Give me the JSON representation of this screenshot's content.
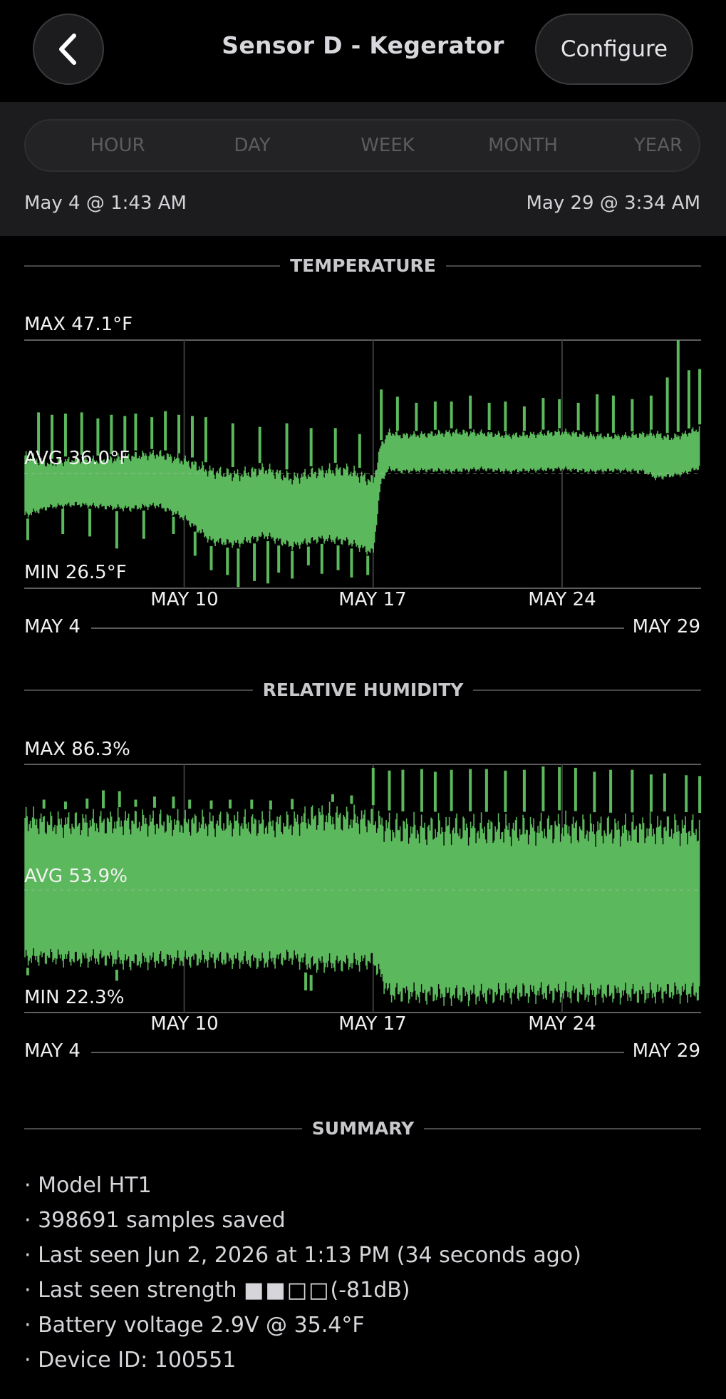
{
  "header": {
    "title": "Sensor D - Kegerator",
    "configure_label": "Configure"
  },
  "range": {
    "tabs": [
      "HOUR",
      "DAY",
      "WEEK",
      "MONTH",
      "YEAR"
    ],
    "start": "May 4 @ 1:43 AM",
    "end": "May 29 @ 3:34 AM"
  },
  "temperature": {
    "section_title": "TEMPERATURE",
    "max_label": "MAX 47.1°F",
    "avg_label": "AVG 36.0°F",
    "min_label": "MIN 26.5°F",
    "range_start": "MAY 4",
    "range_end": "MAY 29"
  },
  "humidity": {
    "section_title": "RELATIVE HUMIDITY",
    "max_label": "MAX 86.3%",
    "avg_label": "AVG 53.9%",
    "min_label": "MIN 22.3%",
    "range_start": "MAY 4",
    "range_end": "MAY 29"
  },
  "summary": {
    "section_title": "SUMMARY",
    "model": "· Model HT1",
    "samples": "· 398691 samples saved",
    "last_seen": "· Last seen Jun 2, 2026 at 1:13  PM (34 seconds ago)",
    "strength_prefix": "· Last seen strength ",
    "strength_boxes": "■■□□",
    "strength_value": "(-81dB)",
    "battery": "· Battery voltage 2.9V @ 35.4°F",
    "device_id": "· Device ID: 100551"
  },
  "colors": {
    "series": "#5cb85c",
    "background": "#000000",
    "panel": "#1c1c1e"
  },
  "chart_data": [
    {
      "type": "area",
      "title": "TEMPERATURE",
      "unit": "°F",
      "x_tick_labels": [
        "MAY 10",
        "MAY 17",
        "MAY 24"
      ],
      "x_ticks_day": [
        10,
        17,
        24
      ],
      "xlim_day": [
        4.07,
        29.15
      ],
      "ylim": [
        26.5,
        47.1
      ],
      "avg": 36.0,
      "series": [
        {
          "x_day": [
            4.1,
            5,
            6,
            7,
            8,
            9,
            10,
            11,
            12,
            13,
            14,
            15,
            16,
            16.5,
            17,
            17.3,
            17.6,
            18,
            19,
            20,
            21,
            22,
            23,
            24,
            25,
            26,
            27,
            27.5,
            28,
            28.5,
            29.1
          ],
          "band_high": [
            38.0,
            37.2,
            37.6,
            37.5,
            37.9,
            38.1,
            37.6,
            36.8,
            36.5,
            37.0,
            36.2,
            36.8,
            37.0,
            36.5,
            36.0,
            38.8,
            39.8,
            39.5,
            39.6,
            39.8,
            39.7,
            39.5,
            39.6,
            39.8,
            39.5,
            39.4,
            39.6,
            39.7,
            39.3,
            39.6,
            40.1
          ],
          "band_low": [
            32.2,
            33.0,
            33.2,
            33.0,
            32.8,
            33.1,
            32.0,
            30.0,
            29.8,
            30.5,
            29.6,
            30.2,
            30.0,
            29.5,
            29.0,
            35.2,
            36.2,
            36.0,
            36.1,
            36.0,
            36.2,
            36.0,
            36.1,
            36.2,
            36.0,
            36.1,
            36.0,
            35.4,
            35.6,
            35.8,
            36.3
          ],
          "spikes": [
            [
              4.6,
              41.1
            ],
            [
              5.1,
              40.9
            ],
            [
              5.6,
              41.0
            ],
            [
              6.2,
              41.1
            ],
            [
              6.8,
              40.6
            ],
            [
              7.3,
              40.9
            ],
            [
              7.8,
              40.8
            ],
            [
              8.2,
              41.0
            ],
            [
              8.8,
              40.7
            ],
            [
              9.3,
              41.2
            ],
            [
              9.8,
              40.9
            ],
            [
              10.3,
              40.8
            ],
            [
              10.8,
              40.7
            ],
            [
              11.8,
              40.2
            ],
            [
              12.8,
              39.9
            ],
            [
              13.8,
              40.2
            ],
            [
              14.7,
              39.8
            ],
            [
              15.6,
              39.8
            ],
            [
              16.5,
              39.3
            ],
            [
              17.3,
              43.0
            ],
            [
              17.9,
              42.4
            ],
            [
              18.6,
              41.9
            ],
            [
              19.3,
              42.0
            ],
            [
              19.9,
              42.0
            ],
            [
              20.6,
              42.5
            ],
            [
              21.3,
              41.9
            ],
            [
              21.9,
              42.0
            ],
            [
              22.6,
              41.6
            ],
            [
              23.3,
              42.3
            ],
            [
              23.9,
              42.2
            ],
            [
              24.6,
              41.9
            ],
            [
              25.3,
              42.6
            ],
            [
              25.9,
              42.5
            ],
            [
              26.6,
              42.2
            ],
            [
              27.3,
              42.5
            ],
            [
              27.9,
              44.0
            ],
            [
              28.3,
              47.1
            ],
            [
              28.7,
              44.6
            ],
            [
              29.1,
              44.7
            ]
          ],
          "dips": [
            [
              4.2,
              30.5
            ],
            [
              5.5,
              31.0
            ],
            [
              6.5,
              30.8
            ],
            [
              7.5,
              29.8
            ],
            [
              8.5,
              30.6
            ],
            [
              9.6,
              31.0
            ],
            [
              10.4,
              29.2
            ],
            [
              11.0,
              28.0
            ],
            [
              11.6,
              27.6
            ],
            [
              12.0,
              26.6
            ],
            [
              12.6,
              27.1
            ],
            [
              13.1,
              26.9
            ],
            [
              13.5,
              27.8
            ],
            [
              14.0,
              27.3
            ],
            [
              14.6,
              28.4
            ],
            [
              15.1,
              27.7
            ],
            [
              15.7,
              28.0
            ],
            [
              16.2,
              27.4
            ],
            [
              16.8,
              27.6
            ]
          ]
        }
      ]
    },
    {
      "type": "area",
      "title": "RELATIVE HUMIDITY",
      "unit": "%",
      "x_tick_labels": [
        "MAY 10",
        "MAY 17",
        "MAY 24"
      ],
      "x_ticks_day": [
        10,
        17,
        24
      ],
      "xlim_day": [
        4.07,
        29.15
      ],
      "ylim": [
        22.3,
        86.3
      ],
      "avg": 53.9,
      "series": [
        {
          "x_day": [
            4.1,
            5,
            6,
            7,
            8,
            9,
            10,
            11,
            12,
            13,
            14,
            14.7,
            15,
            16,
            17,
            17.6,
            18,
            19,
            20,
            21,
            22,
            23,
            24,
            25,
            26,
            27,
            28,
            29.1
          ],
          "band_high": [
            76.0,
            74.6,
            74.8,
            75.0,
            75.4,
            75.1,
            74.9,
            74.8,
            75.0,
            74.6,
            74.7,
            76.6,
            77.0,
            76.2,
            75.8,
            74.4,
            74.2,
            74.0,
            74.3,
            74.1,
            74.0,
            74.1,
            74.5,
            74.0,
            73.8,
            74.0,
            74.2,
            73.8
          ],
          "band_low": [
            33.8,
            34.2,
            33.6,
            33.9,
            32.8,
            33.4,
            33.5,
            33.6,
            33.3,
            33.0,
            34.2,
            32.0,
            32.2,
            32.3,
            33.2,
            24.1,
            24.3,
            24.0,
            23.7,
            23.8,
            24.3,
            24.4,
            24.3,
            24.1,
            24.3,
            24.0,
            24.6,
            24.3
          ],
          "spikes": [
            [
              4.8,
              77.2
            ],
            [
              5.6,
              76.7
            ],
            [
              6.4,
              77.5
            ],
            [
              7.0,
              79.6
            ],
            [
              7.6,
              79.4
            ],
            [
              8.2,
              77.2
            ],
            [
              8.9,
              78.0
            ],
            [
              9.6,
              78.0
            ],
            [
              10.2,
              77.2
            ],
            [
              11.0,
              77.0
            ],
            [
              11.7,
              77.2
            ],
            [
              12.5,
              77.2
            ],
            [
              13.2,
              77.0
            ],
            [
              14.0,
              77.4
            ],
            [
              15.5,
              78.6
            ],
            [
              16.2,
              78.3
            ],
            [
              17.0,
              85.4
            ],
            [
              17.6,
              84.7
            ],
            [
              18.1,
              84.9
            ],
            [
              18.8,
              85.1
            ],
            [
              19.3,
              84.4
            ],
            [
              19.9,
              84.9
            ],
            [
              20.6,
              85.1
            ],
            [
              21.2,
              85.1
            ],
            [
              21.9,
              84.7
            ],
            [
              22.6,
              84.9
            ],
            [
              23.3,
              85.8
            ],
            [
              23.9,
              85.6
            ],
            [
              24.5,
              85.4
            ],
            [
              25.2,
              84.4
            ],
            [
              25.8,
              84.9
            ],
            [
              26.6,
              84.9
            ],
            [
              27.3,
              83.7
            ],
            [
              27.8,
              84.0
            ],
            [
              28.6,
              83.5
            ],
            [
              29.1,
              83.3
            ]
          ],
          "dips": [
            [
              4.2,
              31.9
            ],
            [
              7.5,
              30.5
            ],
            [
              14.5,
              28.0
            ],
            [
              14.7,
              27.9
            ]
          ]
        }
      ]
    }
  ]
}
